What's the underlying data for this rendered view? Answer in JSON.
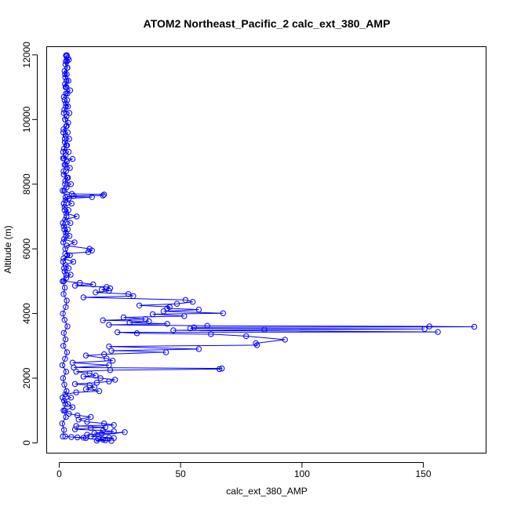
{
  "chart_data": {
    "type": "line",
    "title": "ATOM2 Northeast_Pacific_2 calc_ext_380_AMP",
    "xlabel": "calc_ext_380_AMP",
    "ylabel": "Altitude (m)",
    "xlim": [
      -5,
      176
    ],
    "ylim": [
      -330,
      12240
    ],
    "xticks": [
      0,
      50,
      100,
      150
    ],
    "yticks": [
      0,
      2000,
      4000,
      6000,
      8000,
      10000,
      12000
    ],
    "grid": false,
    "series_color": "#0000ff",
    "marker": "open-circle",
    "series": [
      {
        "values": [
          [
            2.8,
            11980
          ],
          [
            3.0,
            11950
          ],
          [
            3.5,
            11900
          ],
          [
            4.0,
            11850
          ],
          [
            3.2,
            11800
          ],
          [
            2.6,
            11700
          ],
          [
            3.4,
            11600
          ],
          [
            2.2,
            11500
          ],
          [
            3.1,
            11400
          ],
          [
            2.5,
            11300
          ],
          [
            3.8,
            11200
          ],
          [
            2.4,
            11100
          ],
          [
            3.0,
            11000
          ],
          [
            4.5,
            10900
          ],
          [
            2.8,
            10800
          ],
          [
            1.9,
            10700
          ],
          [
            3.3,
            10600
          ],
          [
            2.7,
            10500
          ],
          [
            3.6,
            10400
          ],
          [
            2.1,
            10300
          ],
          [
            4.2,
            10200
          ],
          [
            3.0,
            10100
          ],
          [
            2.4,
            10000
          ],
          [
            3.7,
            9900
          ],
          [
            2.9,
            9800
          ],
          [
            1.8,
            9700
          ],
          [
            3.5,
            9600
          ],
          [
            2.6,
            9500
          ],
          [
            4.1,
            9400
          ],
          [
            2.3,
            9300
          ],
          [
            3.2,
            9200
          ],
          [
            2.0,
            9100
          ],
          [
            3.9,
            9000
          ],
          [
            2.7,
            8900
          ],
          [
            1.6,
            8800
          ],
          [
            5.5,
            8780
          ],
          [
            3.1,
            8700
          ],
          [
            2.2,
            8600
          ],
          [
            4.4,
            8500
          ],
          [
            2.8,
            8400
          ],
          [
            1.9,
            8300
          ],
          [
            3.6,
            8200
          ],
          [
            2.5,
            8100
          ],
          [
            4.8,
            8000
          ],
          [
            3.0,
            7900
          ],
          [
            2.1,
            7800
          ],
          [
            5.2,
            7700
          ],
          [
            18.5,
            7680
          ],
          [
            18.0,
            7650
          ],
          [
            6.0,
            7640
          ],
          [
            3.4,
            7620
          ],
          [
            13.5,
            7600
          ],
          [
            4.0,
            7560
          ],
          [
            2.6,
            7500
          ],
          [
            5.1,
            7400
          ],
          [
            2.2,
            7300
          ],
          [
            3.8,
            7200
          ],
          [
            2.9,
            7100
          ],
          [
            7.2,
            7000
          ],
          [
            2.4,
            6900
          ],
          [
            4.6,
            6800
          ],
          [
            1.9,
            6700
          ],
          [
            3.5,
            6600
          ],
          [
            2.7,
            6500
          ],
          [
            4.2,
            6400
          ],
          [
            2.0,
            6300
          ],
          [
            6.3,
            6200
          ],
          [
            3.1,
            6100
          ],
          [
            12.5,
            6000
          ],
          [
            13.5,
            5950
          ],
          [
            12.0,
            5900
          ],
          [
            2.5,
            5850
          ],
          [
            4.4,
            5800
          ],
          [
            1.8,
            5700
          ],
          [
            5.8,
            5600
          ],
          [
            2.6,
            5500
          ],
          [
            3.9,
            5400
          ],
          [
            2.2,
            5300
          ],
          [
            4.7,
            5200
          ],
          [
            2.9,
            5100
          ],
          [
            1.9,
            5000
          ],
          [
            8.5,
            4950
          ],
          [
            14.0,
            4900
          ],
          [
            6.5,
            4860
          ],
          [
            19.5,
            4820
          ],
          [
            21.0,
            4780
          ],
          [
            17.5,
            4740
          ],
          [
            20.5,
            4700
          ],
          [
            15.0,
            4650
          ],
          [
            28.5,
            4600
          ],
          [
            30.5,
            4540
          ],
          [
            10.0,
            4500
          ],
          [
            52.0,
            4420
          ],
          [
            55.0,
            4360
          ],
          [
            48.5,
            4300
          ],
          [
            33.0,
            4250
          ],
          [
            45.5,
            4200
          ],
          [
            44.5,
            4160
          ],
          [
            57.5,
            4120
          ],
          [
            43.0,
            4070
          ],
          [
            67.5,
            4010
          ],
          [
            38.5,
            3980
          ],
          [
            51.5,
            3920
          ],
          [
            26.5,
            3880
          ],
          [
            35.5,
            3830
          ],
          [
            18.0,
            3790
          ],
          [
            37.0,
            3760
          ],
          [
            29.0,
            3720
          ],
          [
            44.5,
            3680
          ],
          [
            20.5,
            3650
          ],
          [
            61.0,
            3620
          ],
          [
            152.5,
            3600
          ],
          [
            171.0,
            3590
          ],
          [
            55.5,
            3570
          ],
          [
            54.0,
            3540
          ],
          [
            150.5,
            3520
          ],
          [
            84.5,
            3500
          ],
          [
            47.0,
            3480
          ],
          [
            156.0,
            3430
          ],
          [
            24.0,
            3420
          ],
          [
            32.0,
            3390
          ],
          [
            62.5,
            3360
          ],
          [
            77.0,
            3300
          ],
          [
            93.0,
            3190
          ],
          [
            81.0,
            3080
          ],
          [
            81.5,
            3020
          ],
          [
            20.5,
            2980
          ],
          [
            57.5,
            2900
          ],
          [
            21.5,
            2850
          ],
          [
            44.0,
            2800
          ],
          [
            18.5,
            2740
          ],
          [
            11.0,
            2700
          ],
          [
            19.5,
            2610
          ],
          [
            22.0,
            2540
          ],
          [
            5.5,
            2480
          ],
          [
            20.5,
            2400
          ],
          [
            6.0,
            2330
          ],
          [
            67.0,
            2300
          ],
          [
            66.0,
            2280
          ],
          [
            21.0,
            2250
          ],
          [
            7.0,
            2200
          ],
          [
            12.5,
            2150
          ],
          [
            15.0,
            2080
          ],
          [
            10.0,
            2050
          ],
          [
            17.0,
            2000
          ],
          [
            23.0,
            1950
          ],
          [
            20.5,
            1900
          ],
          [
            15.5,
            1860
          ],
          [
            6.5,
            1820
          ],
          [
            12.5,
            1780
          ],
          [
            14.5,
            1720
          ],
          [
            11.0,
            1660
          ],
          [
            16.5,
            1600
          ],
          [
            7.0,
            1560
          ],
          [
            2.5,
            1500
          ],
          [
            4.8,
            1400
          ],
          [
            2.0,
            1300
          ],
          [
            3.6,
            1200
          ],
          [
            5.5,
            1100
          ],
          [
            2.3,
            1000
          ],
          [
            4.0,
            900
          ],
          [
            7.5,
            850
          ],
          [
            13.0,
            800
          ],
          [
            8.0,
            720
          ],
          [
            11.5,
            650
          ],
          [
            18.5,
            600
          ],
          [
            22.5,
            550
          ],
          [
            7.0,
            520
          ],
          [
            19.0,
            480
          ],
          [
            13.0,
            460
          ],
          [
            6.5,
            420
          ],
          [
            18.0,
            380
          ],
          [
            22.5,
            360
          ],
          [
            14.5,
            300
          ],
          [
            17.5,
            280
          ],
          [
            11.5,
            250
          ],
          [
            27.0,
            330
          ],
          [
            13.0,
            200
          ],
          [
            20.5,
            160
          ],
          [
            22.5,
            150
          ],
          [
            16.0,
            120
          ],
          [
            18.0,
            100
          ],
          [
            19.0,
            80
          ],
          [
            15.5,
            70
          ],
          [
            21.5,
            60
          ],
          [
            2.5,
            200
          ],
          [
            5.0,
            180
          ],
          [
            7.5,
            170
          ],
          [
            10.0,
            160
          ],
          [
            11.0,
            150
          ]
        ]
      },
      {
        "values": [
          [
            1.5,
            200
          ],
          [
            2.0,
            400
          ],
          [
            1.2,
            600
          ],
          [
            2.8,
            800
          ],
          [
            1.8,
            1000
          ],
          [
            2.5,
            1200
          ],
          [
            1.4,
            1400
          ],
          [
            3.0,
            1600
          ],
          [
            2.1,
            1800
          ],
          [
            1.6,
            2000
          ],
          [
            2.9,
            2200
          ],
          [
            1.3,
            2400
          ],
          [
            2.4,
            2600
          ],
          [
            3.2,
            2800
          ],
          [
            1.7,
            3000
          ],
          [
            2.6,
            3200
          ],
          [
            1.9,
            3400
          ],
          [
            3.4,
            3600
          ],
          [
            2.2,
            3800
          ],
          [
            1.5,
            4000
          ],
          [
            2.7,
            4200
          ],
          [
            3.1,
            4400
          ],
          [
            1.8,
            4600
          ],
          [
            2.3,
            4800
          ],
          [
            1.4,
            5000
          ],
          [
            2.9,
            5200
          ],
          [
            2.0,
            5400
          ],
          [
            1.6,
            5600
          ],
          [
            3.3,
            5800
          ],
          [
            2.5,
            6000
          ],
          [
            1.7,
            6200
          ],
          [
            2.8,
            6400
          ],
          [
            2.1,
            6600
          ],
          [
            1.5,
            6800
          ],
          [
            3.0,
            7000
          ],
          [
            2.2,
            7200
          ],
          [
            1.9,
            7400
          ],
          [
            2.6,
            7600
          ],
          [
            1.4,
            7800
          ],
          [
            2.4,
            8000
          ],
          [
            3.2,
            8200
          ],
          [
            1.8,
            8400
          ],
          [
            2.7,
            8600
          ],
          [
            2.0,
            8800
          ],
          [
            1.6,
            9000
          ],
          [
            2.9,
            9200
          ],
          [
            2.3,
            9400
          ],
          [
            1.7,
            9600
          ],
          [
            3.1,
            9800
          ],
          [
            2.5,
            10000
          ],
          [
            1.9,
            10200
          ],
          [
            2.8,
            10400
          ],
          [
            2.2,
            10600
          ],
          [
            3.4,
            10800
          ],
          [
            2.6,
            11000
          ],
          [
            3.0,
            11200
          ],
          [
            2.4,
            11400
          ],
          [
            3.3,
            11600
          ],
          [
            2.7,
            11800
          ],
          [
            3.1,
            11990
          ]
        ]
      }
    ]
  }
}
